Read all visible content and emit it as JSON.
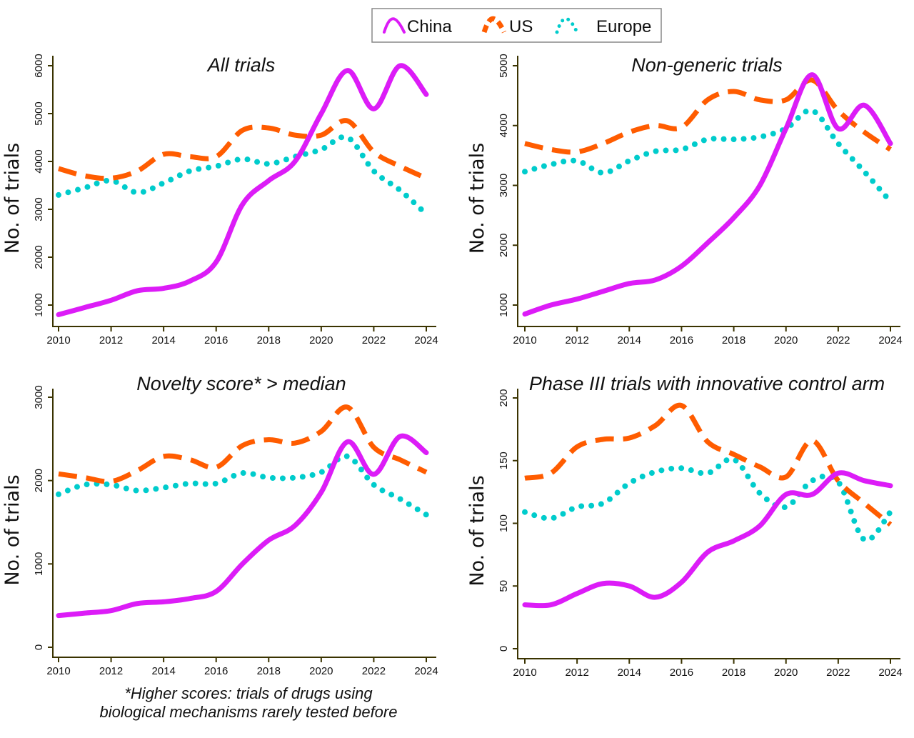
{
  "legend": {
    "placement": "top-center",
    "entries": [
      {
        "name": "China",
        "color": "#dc1cf7",
        "style": "solid"
      },
      {
        "name": "US",
        "color": "#ff5c00",
        "style": "dashed"
      },
      {
        "name": "Europe",
        "color": "#00cccc",
        "style": "dotted"
      }
    ]
  },
  "footnote": [
    "*Higher scores: trials of drugs using",
    "biological mechanisms rarely tested before"
  ],
  "chart_data": [
    {
      "type": "line",
      "title": "All trials",
      "ylabel": "No. of trials",
      "xlabel": "",
      "x": [
        2010,
        2011,
        2012,
        2013,
        2014,
        2015,
        2016,
        2017,
        2018,
        2019,
        2020,
        2021,
        2022,
        2023,
        2024
      ],
      "xticks": [
        "2010",
        "2012",
        "2014",
        "2016",
        "2018",
        "2020",
        "2022",
        "2024"
      ],
      "yticks": [
        "1000",
        "2000",
        "3000",
        "4000",
        "5000",
        "6000"
      ],
      "ylim": [
        1000,
        6000
      ],
      "series": [
        {
          "name": "China",
          "values": [
            800,
            950,
            1100,
            1300,
            1350,
            1500,
            1900,
            3100,
            3600,
            4000,
            5000,
            5900,
            5100,
            6000,
            5400
          ]
        },
        {
          "name": "US",
          "values": [
            3850,
            3700,
            3650,
            3800,
            4150,
            4100,
            4100,
            4650,
            4700,
            4550,
            4550,
            4850,
            4200,
            3900,
            3650
          ]
        },
        {
          "name": "Europe",
          "values": [
            3300,
            3450,
            3600,
            3350,
            3550,
            3800,
            3900,
            4050,
            3950,
            4100,
            4250,
            4500,
            3800,
            3400,
            2900
          ]
        }
      ]
    },
    {
      "type": "line",
      "title": "Non-generic trials",
      "ylabel": "No. of trials",
      "xlabel": "",
      "x": [
        2010,
        2011,
        2012,
        2013,
        2014,
        2015,
        2016,
        2017,
        2018,
        2019,
        2020,
        2021,
        2022,
        2023,
        2024
      ],
      "xticks": [
        "2010",
        "2012",
        "2014",
        "2016",
        "2018",
        "2020",
        "2022",
        "2024"
      ],
      "yticks": [
        "1000",
        "2000",
        "3000",
        "4000",
        "5000"
      ],
      "ylim": [
        1000,
        5000
      ],
      "series": [
        {
          "name": "China",
          "values": [
            850,
            1000,
            1100,
            1230,
            1360,
            1420,
            1650,
            2040,
            2460,
            3000,
            3950,
            4850,
            3950,
            4340,
            3700
          ]
        },
        {
          "name": "US",
          "values": [
            3700,
            3600,
            3560,
            3700,
            3890,
            4000,
            3970,
            4430,
            4570,
            4430,
            4430,
            4760,
            4250,
            3890,
            3600
          ]
        },
        {
          "name": "Europe",
          "values": [
            3230,
            3350,
            3410,
            3210,
            3410,
            3570,
            3600,
            3770,
            3770,
            3810,
            3950,
            4250,
            3700,
            3230,
            2730
          ]
        }
      ]
    },
    {
      "type": "line",
      "title": "Novelty score* > median",
      "ylabel": "No. of trials",
      "xlabel": "",
      "x": [
        2010,
        2011,
        2012,
        2013,
        2014,
        2015,
        2016,
        2017,
        2018,
        2019,
        2020,
        2021,
        2022,
        2023,
        2024
      ],
      "xticks": [
        "2010",
        "2012",
        "2014",
        "2016",
        "2018",
        "2020",
        "2022",
        "2024"
      ],
      "yticks": [
        "0",
        "1000",
        "2000",
        "3000"
      ],
      "ylim": [
        0,
        3000
      ],
      "series": [
        {
          "name": "China",
          "values": [
            380,
            410,
            440,
            525,
            545,
            585,
            670,
            1000,
            1285,
            1460,
            1860,
            2465,
            2075,
            2530,
            2335
          ]
        },
        {
          "name": "US",
          "values": [
            2080,
            2035,
            1990,
            2120,
            2290,
            2250,
            2160,
            2420,
            2490,
            2450,
            2590,
            2880,
            2400,
            2250,
            2100
          ]
        },
        {
          "name": "Europe",
          "values": [
            1835,
            1950,
            1950,
            1880,
            1915,
            1965,
            1965,
            2090,
            2035,
            2035,
            2100,
            2290,
            1950,
            1780,
            1590
          ]
        }
      ]
    },
    {
      "type": "line",
      "title": "Phase III trials with innovative control arm",
      "ylabel": "No. of trials",
      "xlabel": "",
      "x": [
        2010,
        2011,
        2012,
        2013,
        2014,
        2015,
        2016,
        2017,
        2018,
        2019,
        2020,
        2021,
        2022,
        2023,
        2024
      ],
      "xticks": [
        "2010",
        "2012",
        "2014",
        "2016",
        "2018",
        "2020",
        "2022",
        "2024"
      ],
      "yticks": [
        "0",
        "50",
        "100",
        "150",
        "200"
      ],
      "ylim": [
        0,
        200
      ],
      "series": [
        {
          "name": "China",
          "values": [
            35,
            35,
            44,
            52,
            50,
            41,
            53,
            77,
            86,
            98,
            123,
            123,
            140,
            134,
            130
          ]
        },
        {
          "name": "US",
          "values": [
            136,
            140,
            161,
            167,
            168,
            178,
            194,
            165,
            155,
            145,
            137,
            166,
            134,
            116,
            99
          ]
        },
        {
          "name": "Europe",
          "values": [
            109,
            104,
            113,
            116,
            132,
            141,
            144,
            140,
            151,
            124,
            113,
            134,
            133,
            87,
            109
          ]
        }
      ]
    }
  ]
}
